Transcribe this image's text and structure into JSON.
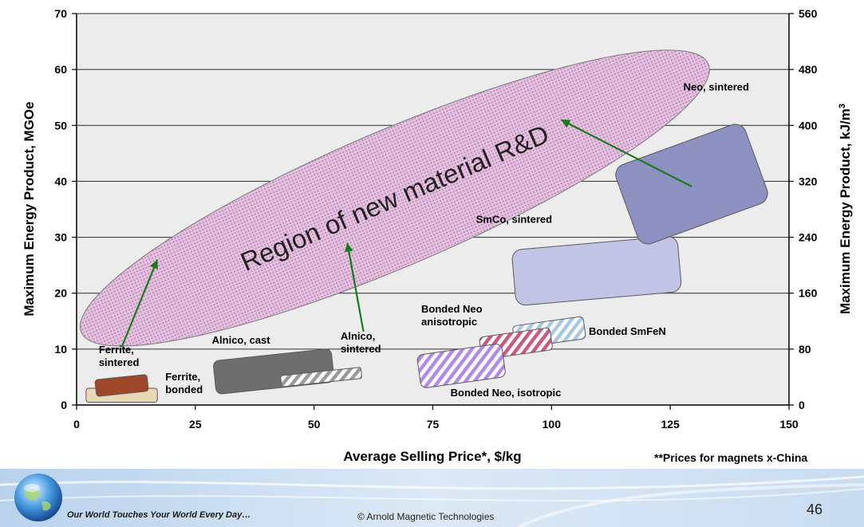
{
  "chart_data": {
    "type": "scatter",
    "xlabel": "Average Selling Price*, $/kg",
    "ylabel": "Maximum Energy Product, MGOe",
    "y2label": "Maximum Energy Product, kJ/m",
    "y2label_sup": "3",
    "xlim": [
      0,
      150
    ],
    "ylim": [
      0,
      70
    ],
    "y2lim": [
      0,
      560
    ],
    "x_ticks": [
      0,
      25,
      50,
      75,
      100,
      125,
      150
    ],
    "y_ticks": [
      0,
      10,
      20,
      30,
      40,
      50,
      60,
      70
    ],
    "y2_ticks": [
      0,
      80,
      160,
      240,
      320,
      400,
      480,
      560
    ],
    "grid": "horizontal",
    "background": "#ececec",
    "region": {
      "label": "Region of new material R&D",
      "center": [
        67,
        37
      ],
      "semi_axis_major_x": 66,
      "semi_axis_major_y": 24,
      "semi_axis_minor_x": 10.5,
      "semi_axis_minor_y": -8.2,
      "color": "#d9a9d4"
    },
    "materials": [
      {
        "name": "Ferrite, bonded",
        "label_lines": [
          "Ferrite,",
          "bonded"
        ],
        "x": [
          2,
          17
        ],
        "y": [
          0.5,
          3
        ],
        "angle": 0,
        "fill": "#e8d8b8",
        "pattern": "none"
      },
      {
        "name": "Ferrite, sintered",
        "label_lines": [
          "Ferrite,",
          "sintered"
        ],
        "x": [
          4,
          15
        ],
        "y": [
          2,
          5
        ],
        "angle": -6,
        "fill": "#a0472a",
        "pattern": "none"
      },
      {
        "name": "Alnico, cast",
        "label_lines": [
          "Alnico, cast"
        ],
        "x": [
          29,
          54
        ],
        "y": [
          3,
          9
        ],
        "angle": -6,
        "fill": "#6e6e6e",
        "pattern": "none"
      },
      {
        "name": "Alnico, sintered",
        "label_lines": [
          "Alnico,",
          "sintered"
        ],
        "x": [
          43,
          60
        ],
        "y": [
          4,
          6
        ],
        "angle": -6,
        "fill": "#9a9a9a",
        "pattern": "stripes"
      },
      {
        "name": "SmCo, sintered",
        "label_lines": [
          "SmCo, sintered"
        ],
        "x": [
          92,
          127
        ],
        "y": [
          19,
          29
        ],
        "angle": -5,
        "fill": "#c2c4e6",
        "pattern": "none"
      },
      {
        "name": "Neo, sintered",
        "label_lines": [
          "Neo, sintered"
        ],
        "x": [
          115,
          144
        ],
        "y": [
          32,
          47
        ],
        "angle": -20,
        "fill": "#8c91c2",
        "pattern": "none"
      },
      {
        "name": "Bonded SmFeN",
        "label_lines": [
          "Bonded SmFeN"
        ],
        "x": [
          92,
          107
        ],
        "y": [
          11,
          15
        ],
        "angle": -8,
        "fill": "#a5c8e4",
        "pattern": "stripes"
      },
      {
        "name": "Bonded Neo anisotropic",
        "label_lines": [
          "Bonded Neo",
          "anisotropic"
        ],
        "x": [
          85,
          100
        ],
        "y": [
          9,
          13
        ],
        "angle": -8,
        "fill": "#cc5a80",
        "pattern": "stripes"
      },
      {
        "name": "Bonded Neo, isotropic",
        "label_lines": [
          "Bonded Neo, isotropic"
        ],
        "x": [
          72,
          90
        ],
        "y": [
          4,
          10
        ],
        "angle": -8,
        "fill": "#b48ae8",
        "pattern": "stripes"
      }
    ],
    "arrows": [
      {
        "from": "Ferrite, sintered",
        "to": [
          17,
          26
        ]
      },
      {
        "from": "Alnico, sintered",
        "to": [
          57,
          29
        ]
      },
      {
        "from": "Neo, sintered",
        "to": [
          102,
          51
        ]
      }
    ]
  },
  "footnote": "**Prices for magnets x-China",
  "footer": {
    "tagline": "Our World Touches Your World Every Day…",
    "copyright": "© Arnold Magnetic Technologies",
    "page_number": "46",
    "logo": "globe-icon"
  }
}
